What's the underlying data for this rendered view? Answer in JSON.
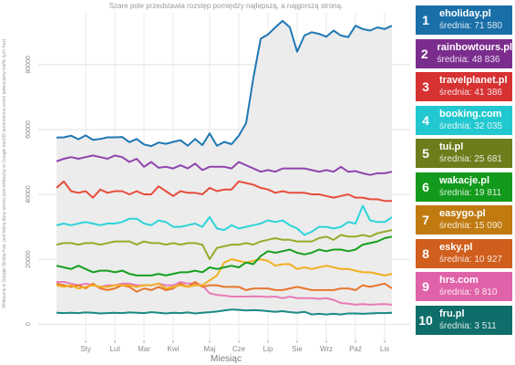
{
  "chart_data": {
    "type": "line",
    "title": "Szare pole przedstawia rozstęp pomiędzy najlepszą, a najgorszą stroną.",
    "xlabel": "Miesiąc",
    "ylabel": "Widoczny w Google (liczba fraz, pod którą dany serwis jest widoczny w Google top100 pomnożona przez potencjalny traffic tych fraz)",
    "ylim": [
      -5000,
      96000
    ],
    "yticks": [
      0,
      20000,
      40000,
      60000,
      80000
    ],
    "ytick_labels": [
      "0",
      "20000",
      "40000",
      "60000",
      "80000"
    ],
    "x_tick_labels": [
      "Sty",
      "Lut",
      "Mar",
      "Kwi",
      "Maj",
      "Cze",
      "Lip",
      "Sie",
      "Wrz",
      "Paź",
      "Lis"
    ],
    "x_tick_index": [
      4,
      8,
      12,
      16,
      21,
      25,
      29,
      33,
      37,
      41,
      45
    ],
    "grid": true,
    "legend_position": "right",
    "range_band": true,
    "series": [
      {
        "rank": "1",
        "name": "eholiday.pl",
        "avg_label": "średnia: 71 580",
        "color": "#1f77b4",
        "box_color": "#1a6fa8",
        "values": [
          57500,
          57600,
          58100,
          57000,
          58200,
          56800,
          57100,
          57600,
          57600,
          57700,
          56100,
          57100,
          55400,
          54900,
          56000,
          55600,
          56200,
          56700,
          55000,
          57100,
          55200,
          58800,
          55000,
          56200,
          55500,
          58100,
          62000,
          76000,
          88000,
          89300,
          91500,
          93500,
          91500,
          84000,
          89000,
          90000,
          89500,
          88600,
          90500,
          89000,
          88500,
          92000,
          91000,
          90500,
          91500,
          91000,
          92000
        ]
      },
      {
        "rank": "2",
        "name": "rainbowtours.pl",
        "avg_label": "średnia: 48 836",
        "color": "#8e44ad",
        "box_color": "#7b2d8e",
        "values": [
          50200,
          51000,
          51500,
          51000,
          51500,
          52000,
          51500,
          51000,
          52000,
          51500,
          50000,
          51000,
          48500,
          50000,
          48200,
          48500,
          48000,
          49000,
          48000,
          49500,
          47500,
          48500,
          48500,
          48500,
          48000,
          50000,
          49000,
          48000,
          47000,
          47500,
          47000,
          48000,
          48000,
          48000,
          48000,
          47500,
          47000,
          47500,
          47000,
          48500,
          47000,
          47200,
          46500,
          46000,
          46500,
          46500,
          47000
        ]
      },
      {
        "rank": "3",
        "name": "travelplanet.pl",
        "avg_label": "średnia: 41 386",
        "color": "#e74c3c",
        "box_color": "#d63232",
        "values": [
          42000,
          44000,
          41000,
          40500,
          41000,
          39000,
          41500,
          40500,
          41000,
          41000,
          40000,
          41000,
          40000,
          40000,
          42500,
          41000,
          39500,
          41000,
          40500,
          40500,
          40000,
          42000,
          41000,
          41500,
          41500,
          44000,
          43500,
          43000,
          42000,
          41500,
          40500,
          41000,
          40500,
          40500,
          40500,
          40000,
          40000,
          39500,
          39000,
          39500,
          40000,
          39000,
          39000,
          38500,
          38500,
          38000,
          38000
        ]
      },
      {
        "rank": "4",
        "name": "booking.com",
        "avg_label": "średnia: 32 035",
        "color": "#2dd4d9",
        "box_color": "#22c8cf",
        "values": [
          30500,
          31000,
          30500,
          31000,
          31500,
          31000,
          30500,
          31000,
          31000,
          31500,
          32500,
          32500,
          31000,
          30500,
          32000,
          31500,
          30000,
          30000,
          30500,
          31000,
          30000,
          33000,
          29500,
          29000,
          30500,
          29500,
          30000,
          30500,
          31000,
          32000,
          31500,
          32000,
          30500,
          29500,
          27500,
          28500,
          30000,
          30000,
          29500,
          30000,
          31500,
          31000,
          36500,
          32000,
          31500,
          31500,
          33000
        ]
      },
      {
        "rank": "5",
        "name": "tui.pl",
        "avg_label": "średnia: 25 681",
        "color": "#9aaa2a",
        "box_color": "#6e7c1c",
        "values": [
          24500,
          25000,
          25000,
          24500,
          25000,
          25000,
          24500,
          25000,
          25500,
          25500,
          25500,
          24500,
          25500,
          25000,
          25000,
          24500,
          25000,
          24500,
          25000,
          25000,
          24500,
          20000,
          23500,
          24000,
          24500,
          24500,
          25000,
          24500,
          25500,
          26000,
          26500,
          26000,
          26000,
          25500,
          25500,
          25500,
          26500,
          27000,
          26000,
          27500,
          27000,
          27000,
          27500,
          27000,
          28000,
          28500,
          29000
        ]
      },
      {
        "rank": "6",
        "name": "wakacje.pl",
        "avg_label": "średnia: 19 811",
        "color": "#16a020",
        "box_color": "#129a1c",
        "values": [
          18000,
          17500,
          17000,
          18000,
          17000,
          16000,
          16500,
          16500,
          16000,
          16500,
          15500,
          15000,
          15000,
          15000,
          15500,
          15000,
          15500,
          16000,
          16000,
          16500,
          16000,
          17500,
          17000,
          17500,
          18000,
          17500,
          19000,
          18500,
          21000,
          22500,
          22000,
          22500,
          23000,
          22000,
          21500,
          22000,
          23000,
          22500,
          23000,
          23000,
          22500,
          23000,
          24500,
          25000,
          25500,
          26500,
          27000
        ]
      },
      {
        "rank": "7",
        "name": "easygo.pl",
        "avg_label": "średnia: 15 090",
        "color": "#f0b020",
        "box_color": "#c07a10",
        "values": [
          12000,
          11500,
          12000,
          11000,
          11500,
          12000,
          11500,
          11500,
          12000,
          12000,
          12000,
          11500,
          12000,
          12000,
          12500,
          11000,
          11500,
          12000,
          11500,
          12000,
          12000,
          13500,
          15000,
          19000,
          20000,
          19500,
          19000,
          19500,
          20000,
          19500,
          18000,
          18500,
          18500,
          17000,
          17500,
          17000,
          17500,
          18000,
          17500,
          17000,
          17000,
          16500,
          16000,
          16000,
          15500,
          15000,
          15500
        ]
      },
      {
        "rank": "8",
        "name": "esky.pl",
        "avg_label": "średnia: 10 927",
        "color": "#e8772e",
        "box_color": "#d05e1c",
        "values": [
          12500,
          12000,
          11500,
          12000,
          11000,
          12500,
          11000,
          10500,
          11000,
          12000,
          11500,
          10000,
          11000,
          10500,
          11500,
          10500,
          11000,
          12500,
          11500,
          13000,
          11500,
          12000,
          12000,
          11500,
          11500,
          11500,
          10500,
          11000,
          11000,
          11000,
          10500,
          10500,
          11000,
          11500,
          11000,
          10500,
          10500,
          10500,
          10500,
          11000,
          11000,
          10500,
          12000,
          11500,
          12000,
          12500,
          11000
        ]
      },
      {
        "rank": "9",
        "name": "hrs.com",
        "avg_label": "średnia: 9 810",
        "color": "#e87ab8",
        "box_color": "#e062a8",
        "values": [
          13000,
          13000,
          12500,
          12000,
          12500,
          12000,
          11500,
          12000,
          12000,
          12500,
          12500,
          12000,
          12000,
          12000,
          12500,
          12000,
          12000,
          13000,
          12500,
          12500,
          12000,
          9500,
          9000,
          8800,
          8500,
          8500,
          8500,
          8600,
          8500,
          8400,
          8500,
          8000,
          8500,
          8000,
          8000,
          8000,
          7800,
          8000,
          7500,
          6500,
          6300,
          6000,
          6200,
          6000,
          6100,
          6200,
          6000
        ]
      },
      {
        "rank": "10",
        "name": "fru.pl",
        "avg_label": "średnia: 3 511",
        "color": "#1a8a84",
        "box_color": "#0f6e6a",
        "values": [
          3500,
          3400,
          3500,
          3400,
          3600,
          3500,
          3300,
          3400,
          3500,
          3400,
          3600,
          3500,
          3400,
          3700,
          3500,
          3300,
          3500,
          3400,
          3600,
          3300,
          3500,
          3700,
          3900,
          4200,
          4500,
          4400,
          4200,
          4300,
          4200,
          4000,
          3800,
          4000,
          3700,
          3500,
          3800,
          3000,
          3200,
          3000,
          3200,
          3000,
          3300,
          3300,
          3200,
          3300,
          3400,
          3400,
          3500
        ]
      }
    ]
  }
}
